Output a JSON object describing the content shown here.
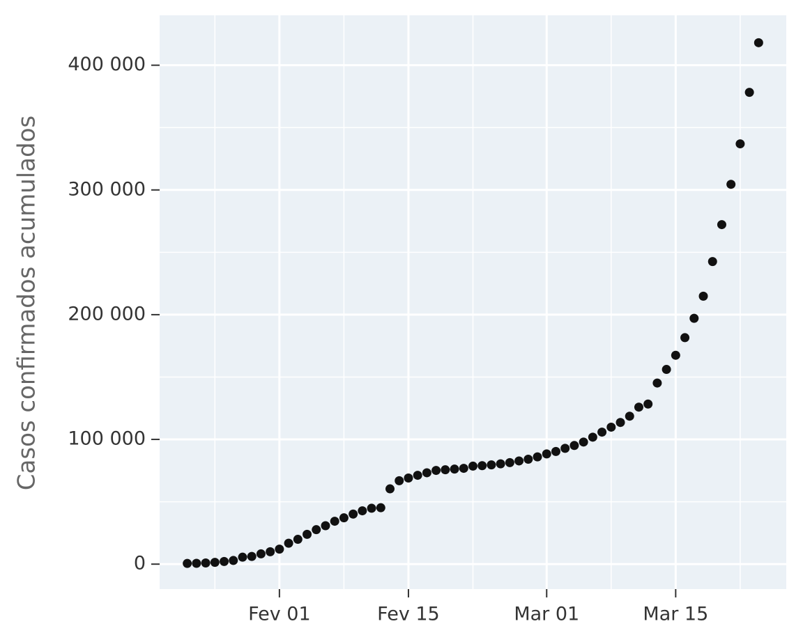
{
  "chart_data": {
    "type": "scatter",
    "y_label": "Casos confirmados acumulados",
    "x": [
      "01-22",
      "01-23",
      "01-24",
      "01-25",
      "01-26",
      "01-27",
      "01-28",
      "01-29",
      "01-30",
      "01-31",
      "02-01",
      "02-02",
      "02-03",
      "02-04",
      "02-05",
      "02-06",
      "02-07",
      "02-08",
      "02-09",
      "02-10",
      "02-11",
      "02-12",
      "02-13",
      "02-14",
      "02-15",
      "02-16",
      "02-17",
      "02-18",
      "02-19",
      "02-20",
      "02-21",
      "02-22",
      "02-23",
      "02-24",
      "02-25",
      "02-26",
      "02-27",
      "02-28",
      "02-29",
      "03-01",
      "03-02",
      "03-03",
      "03-04",
      "03-05",
      "03-06",
      "03-07",
      "03-08",
      "03-09",
      "03-10",
      "03-11",
      "03-12",
      "03-13",
      "03-14",
      "03-15",
      "03-16",
      "03-17",
      "03-18",
      "03-19",
      "03-20",
      "03-21",
      "03-22",
      "03-23",
      "03-24"
    ],
    "values": [
      555,
      654,
      941,
      1434,
      2118,
      2927,
      5578,
      6166,
      8234,
      9927,
      12038,
      16787,
      19881,
      23892,
      27635,
      30794,
      34391,
      37120,
      40150,
      42762,
      44802,
      45221,
      60368,
      66885,
      69030,
      71224,
      73258,
      75136,
      75639,
      76197,
      76819,
      78572,
      78958,
      79561,
      80406,
      81388,
      82746,
      84112,
      86011,
      88369,
      90306,
      92840,
      95120,
      97886,
      101801,
      105847,
      109821,
      113590,
      118620,
      125875,
      128352,
      145205,
      156101,
      167454,
      181574,
      197102,
      214821,
      242570,
      272208,
      304507,
      336953,
      378231,
      418041
    ],
    "color": "#111111",
    "xlim": [
      "01-19",
      "03-27"
    ],
    "xticks": [
      {
        "value": "02-01",
        "label": "Fev 01"
      },
      {
        "value": "02-15",
        "label": "Fev 15"
      },
      {
        "value": "03-01",
        "label": "Mar 01"
      },
      {
        "value": "03-15",
        "label": "Mar 15"
      }
    ],
    "xminor": [
      "01-25",
      "02-08",
      "02-22",
      "03-08",
      "03-22"
    ],
    "ylim": [
      -20000,
      440000
    ],
    "yticks": [
      0,
      {
        "value": 100000,
        "label": "100 000"
      },
      {
        "value": 200000,
        "label": "200 000"
      },
      {
        "value": 300000,
        "label": "300 000"
      },
      {
        "value": 400000,
        "label": "400 000"
      }
    ],
    "yminor": [
      50000,
      150000,
      250000,
      350000
    ],
    "grid": true
  }
}
